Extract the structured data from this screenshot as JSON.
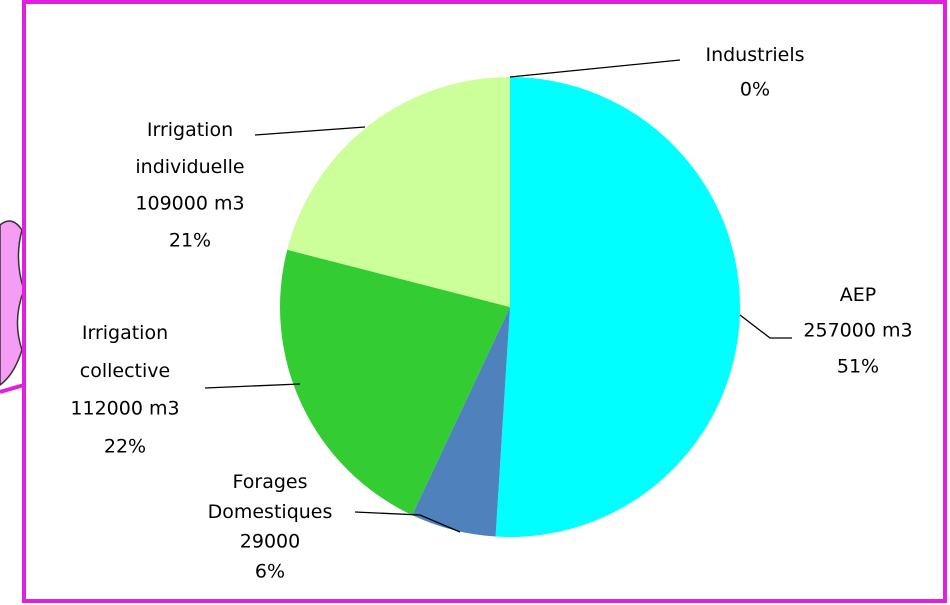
{
  "chart_data": {
    "type": "pie",
    "categories": [
      "Industriels",
      "AEP",
      "Forages Domestiques",
      "Irrigation collective",
      "Irrigation individuelle"
    ],
    "values": [
      0,
      51,
      6,
      22,
      21
    ],
    "value_labels": [
      "0%",
      "51%",
      "6%",
      "22%",
      "21%"
    ],
    "volumes": [
      null,
      257000,
      29000,
      112000,
      109000
    ],
    "volume_labels": [
      null,
      "257000 m3",
      "29000",
      "112000 m3",
      "109000 m3"
    ],
    "colors": [
      "#808080",
      "#00ffff",
      "#4f81bd",
      "#33cc33",
      "#ccff99"
    ]
  }
}
